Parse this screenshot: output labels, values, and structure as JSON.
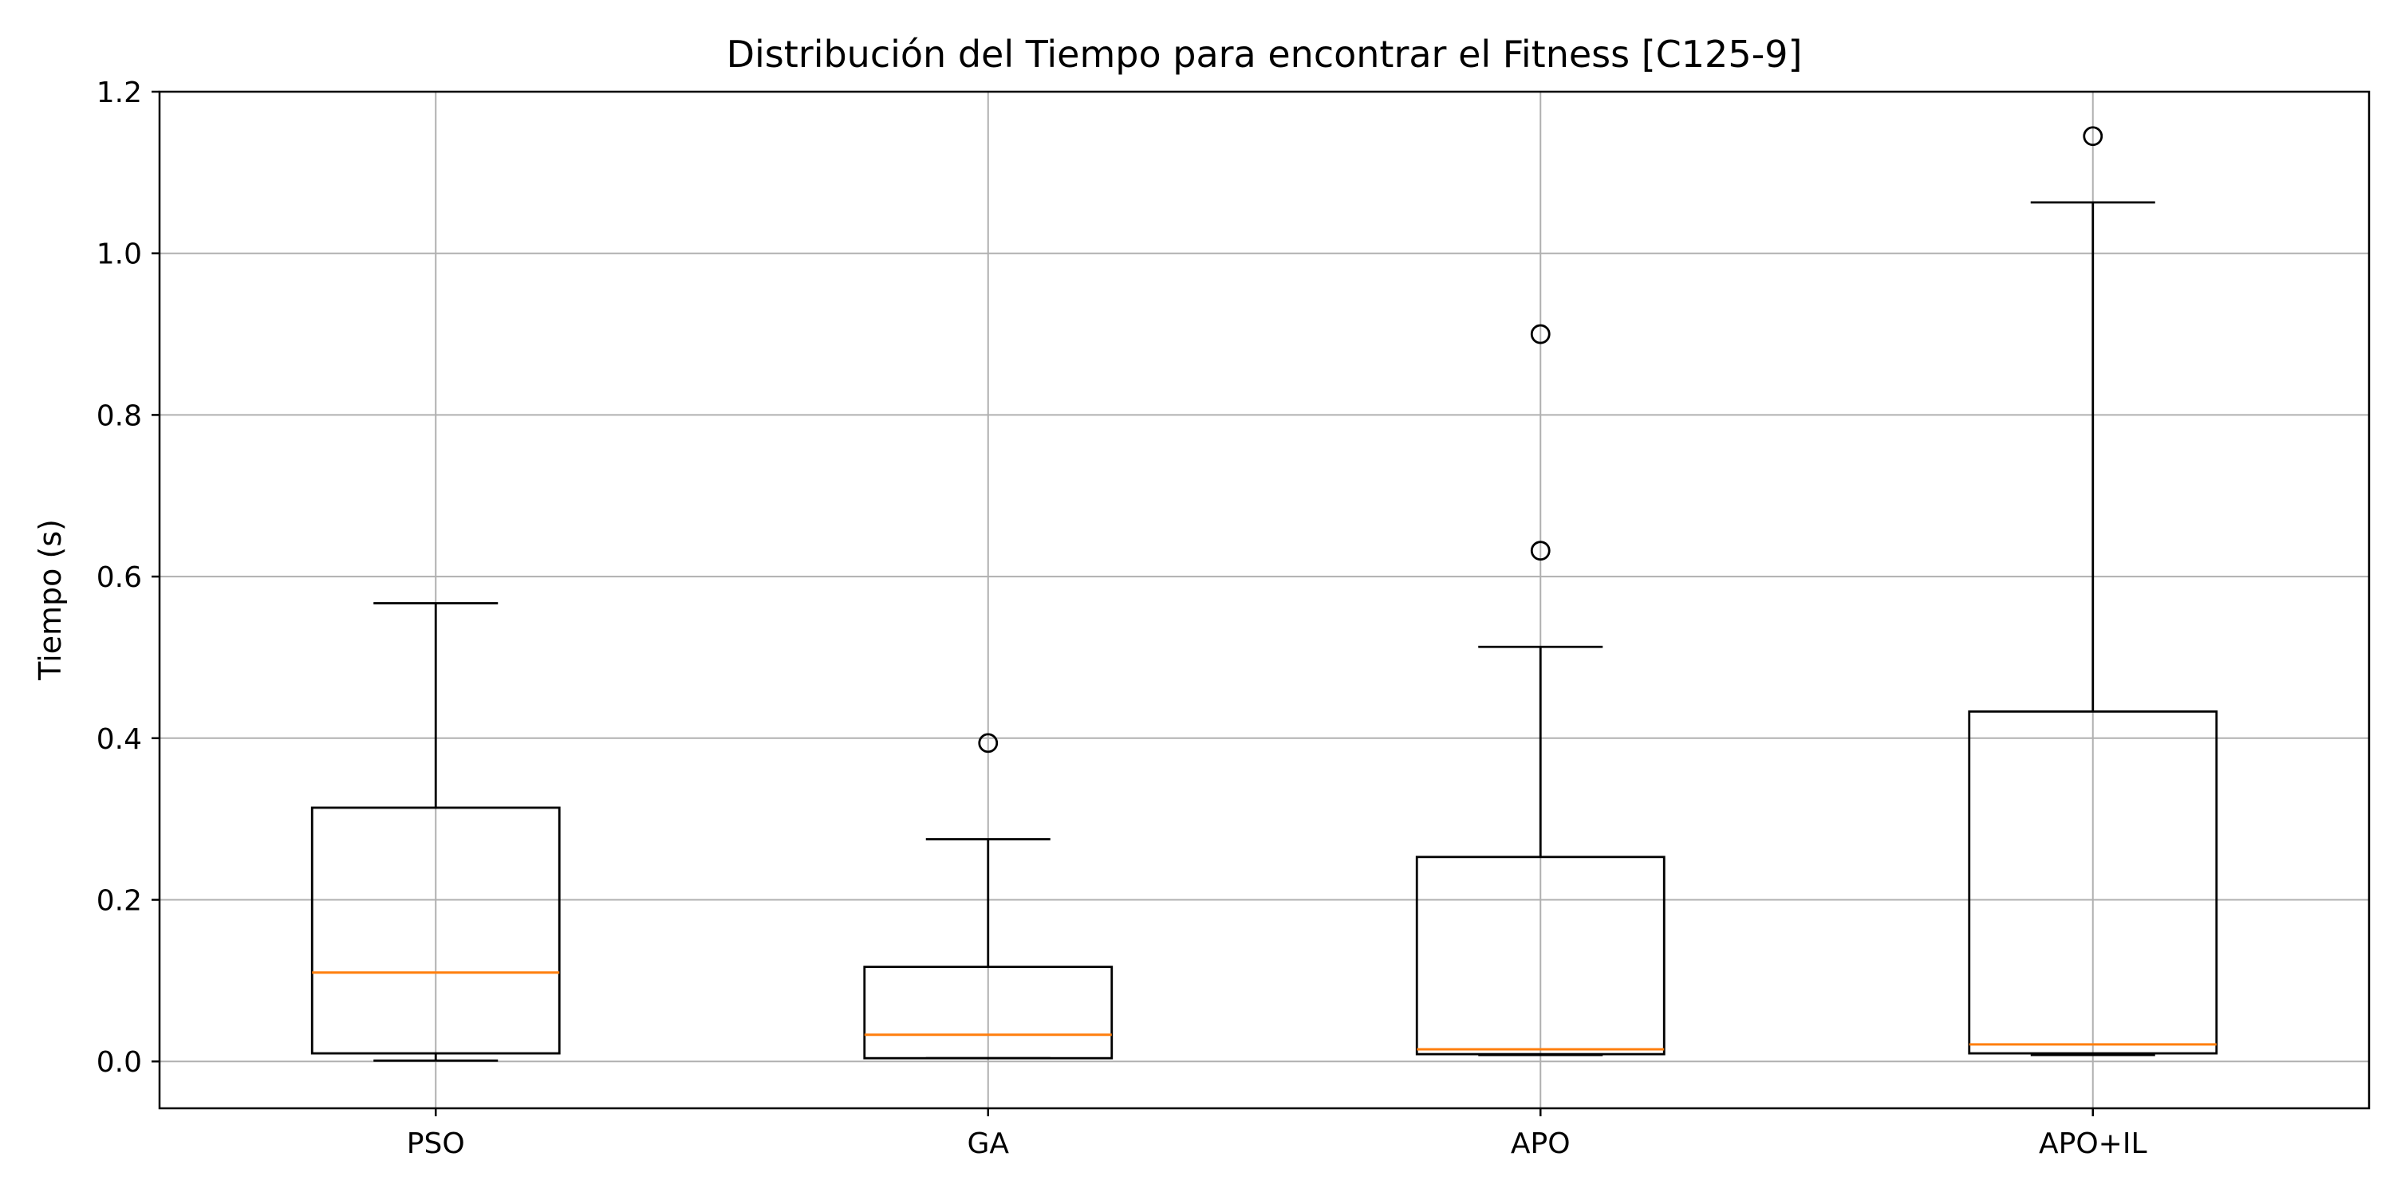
{
  "colors": {
    "box": "#000000",
    "median": "#ff7f0e",
    "grid": "#b0b0b0",
    "background": "#ffffff"
  },
  "chart_data": {
    "type": "box",
    "title": "Distribución del Tiempo para encontrar el Fitness [C125-9]",
    "xlabel": "",
    "ylabel": "Tiempo (s)",
    "ylim": [
      -0.058,
      1.2
    ],
    "yticks": [
      0.0,
      0.2,
      0.4,
      0.6,
      0.8,
      1.0,
      1.2
    ],
    "ytick_labels": [
      "0.0",
      "0.2",
      "0.4",
      "0.6",
      "0.8",
      "1.0",
      "1.2"
    ],
    "grid": true,
    "categories": [
      "PSO",
      "GA",
      "APO",
      "APO+IL"
    ],
    "boxes": [
      {
        "whisker_low": 0.001,
        "q1": 0.01,
        "median": 0.11,
        "q3": 0.314,
        "whisker_high": 0.567,
        "outliers": []
      },
      {
        "whisker_low": 0.004,
        "q1": 0.004,
        "median": 0.033,
        "q3": 0.117,
        "whisker_high": 0.275,
        "outliers": [
          0.394
        ]
      },
      {
        "whisker_low": 0.008,
        "q1": 0.009,
        "median": 0.015,
        "q3": 0.253,
        "whisker_high": 0.513,
        "outliers": [
          0.632,
          0.9
        ]
      },
      {
        "whisker_low": 0.008,
        "q1": 0.01,
        "median": 0.021,
        "q3": 0.433,
        "whisker_high": 1.063,
        "outliers": [
          1.145
        ]
      }
    ]
  }
}
